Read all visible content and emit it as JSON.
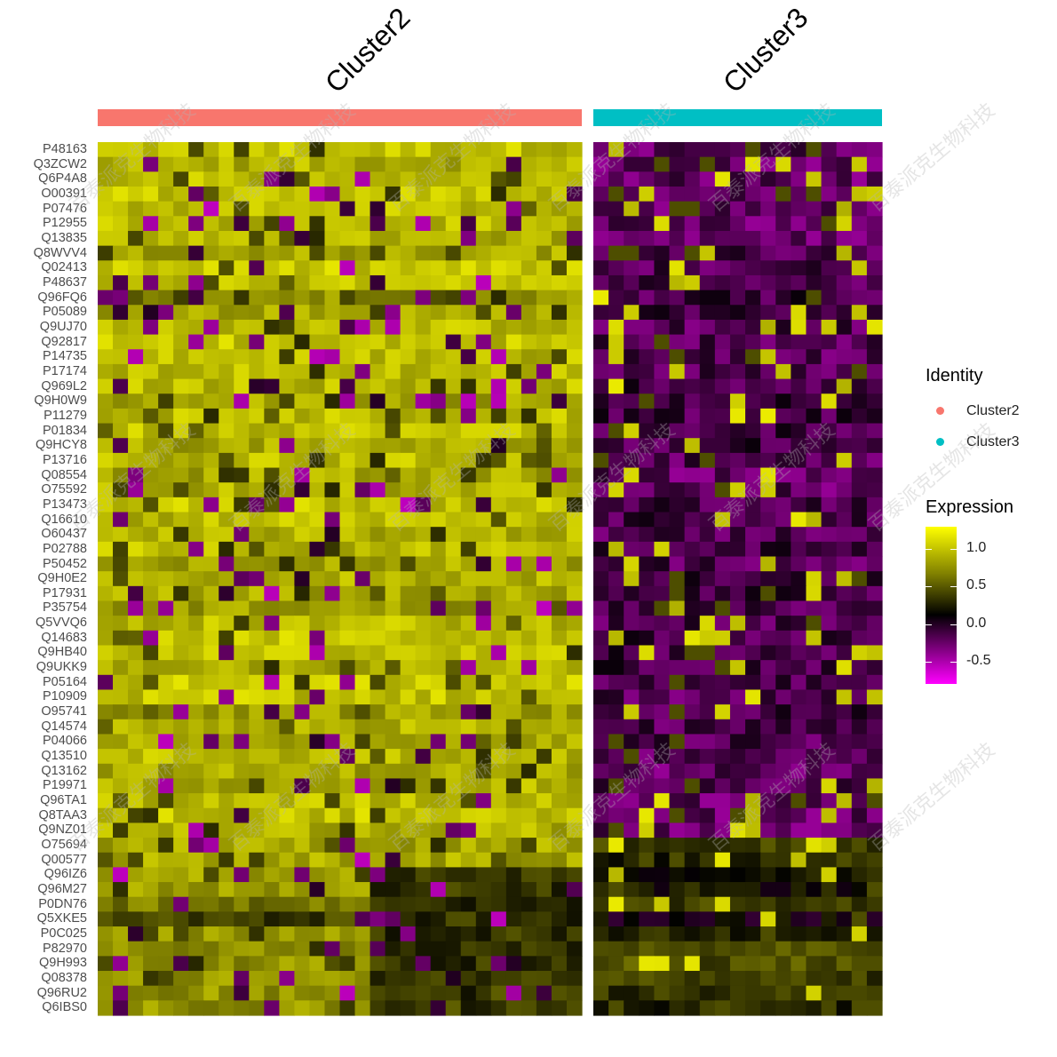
{
  "chart_data": {
    "type": "heatmap",
    "clusters": [
      {
        "name": "Cluster2",
        "color": "#F8766D",
        "n_columns": 32
      },
      {
        "name": "Cluster3",
        "color": "#00BFC4",
        "n_columns": 19
      }
    ],
    "genes": [
      "P48163",
      "Q3ZCW2",
      "Q6P4A8",
      "O00391",
      "P07476",
      "P12955",
      "Q13835",
      "Q8WVV4",
      "Q02413",
      "P48637",
      "Q96FQ6",
      "P05089",
      "Q9UJ70",
      "Q92817",
      "P14735",
      "P17174",
      "Q969L2",
      "Q9H0W9",
      "P11279",
      "P01834",
      "Q9HCY8",
      "P13716",
      "Q08554",
      "O75592",
      "P13473",
      "Q16610",
      "O60437",
      "P02788",
      "P50452",
      "Q9H0E2",
      "P17931",
      "P35754",
      "Q5VVQ6",
      "Q14683",
      "Q9HB40",
      "Q9UKK9",
      "P05164",
      "P10909",
      "O95741",
      "Q14574",
      "P04066",
      "Q13510",
      "Q13162",
      "P19971",
      "Q96TA1",
      "Q8TAA3",
      "Q9NZ01",
      "O75694",
      "Q00577",
      "Q96IZ6",
      "Q96M27",
      "P0DN76",
      "Q5XKE5",
      "P0C025",
      "P82970",
      "Q9H993",
      "Q08378",
      "Q96RU2",
      "Q6IBS0"
    ],
    "expression_scale": {
      "min": -0.8,
      "max": 1.3,
      "colors": {
        "low": "#FF00FF",
        "mid": "#000000",
        "high": "#FFFF00"
      },
      "ticks": [
        1.0,
        0.5,
        0.0,
        -0.5
      ],
      "tick_labels": [
        "1.0",
        "0.5",
        "0.0",
        "-0.5"
      ]
    },
    "legends": {
      "identity_title": "Identity",
      "identity_items": [
        "Cluster2",
        "Cluster3"
      ],
      "expression_title": "Expression"
    },
    "row_profile": {
      "cluster2_mean": [
        1.0,
        0.9,
        0.95,
        1.0,
        0.95,
        0.95,
        0.9,
        0.85,
        1.0,
        0.95,
        0.75,
        0.85,
        0.95,
        1.0,
        0.95,
        0.95,
        0.95,
        0.85,
        0.95,
        1.0,
        0.85,
        0.95,
        0.85,
        0.9,
        1.0,
        0.95,
        0.9,
        0.95,
        0.85,
        0.9,
        0.85,
        0.8,
        0.95,
        1.0,
        0.95,
        0.9,
        1.0,
        1.0,
        0.8,
        0.9,
        0.9,
        0.95,
        0.85,
        0.9,
        0.95,
        1.0,
        0.9,
        0.85,
        0.85,
        0.8,
        0.8,
        0.6,
        0.3,
        0.75,
        0.75,
        0.75,
        0.75,
        0.75,
        0.75
      ],
      "cluster3_mean": [
        -0.3,
        -0.3,
        -0.3,
        -0.3,
        -0.3,
        -0.3,
        -0.3,
        -0.25,
        -0.25,
        -0.25,
        -0.2,
        -0.2,
        -0.25,
        -0.25,
        -0.25,
        -0.25,
        -0.2,
        -0.2,
        -0.2,
        -0.2,
        -0.2,
        -0.25,
        -0.3,
        -0.3,
        -0.2,
        -0.2,
        -0.25,
        -0.2,
        -0.25,
        -0.2,
        -0.2,
        -0.25,
        -0.25,
        -0.2,
        -0.2,
        -0.2,
        -0.25,
        -0.25,
        -0.2,
        -0.25,
        -0.25,
        -0.25,
        -0.3,
        -0.25,
        -0.3,
        -0.3,
        -0.3,
        0.3,
        0.2,
        0.1,
        0.1,
        0.3,
        0.0,
        0.2,
        0.4,
        0.4,
        0.3,
        0.2,
        0.2
      ],
      "late_block_cluster2_cols": [
        18,
        32
      ],
      "late_block_value": 0.25,
      "late_block_rows": [
        49,
        58
      ]
    }
  },
  "watermark_text": "百泰派克生物科技"
}
